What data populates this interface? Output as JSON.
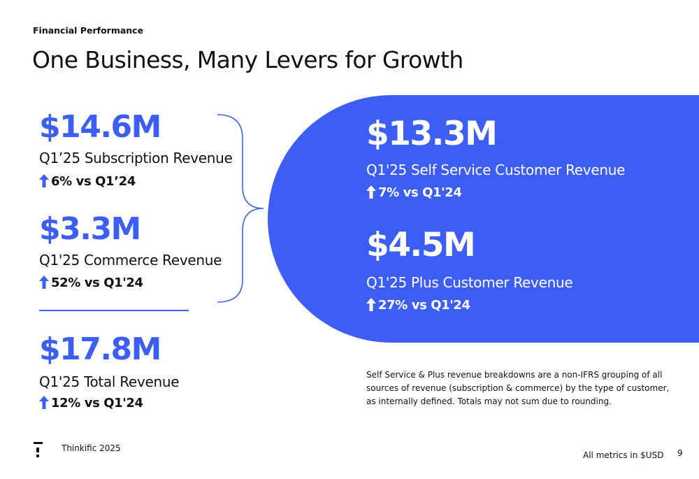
{
  "header": {
    "eyebrow": "Financial Performance",
    "title": "One Business, Many Levers for Growth"
  },
  "left_metrics": [
    {
      "value": "$14.6M",
      "label": "Q1’25 Subscription Revenue",
      "change": "6% vs Q1’24"
    },
    {
      "value": "$3.3M",
      "label": "Q1'25 Commerce Revenue",
      "change": "52% vs Q1'24"
    },
    {
      "value": "$17.8M",
      "label": "Q1'25 Total Revenue",
      "change": "12% vs Q1'24"
    }
  ],
  "right_metrics": [
    {
      "value": "$13.3M",
      "label": "Q1'25 Self Service Customer Revenue",
      "change": "7% vs Q1'24"
    },
    {
      "value": "$4.5M",
      "label": "Q1'25 Plus Customer Revenue",
      "change": "27% vs Q1'24"
    }
  ],
  "footnote": "Self Service & Plus revenue breakdowns are a non-IFRS grouping of all sources of revenue (subscription & commerce) by the type of customer, as internally defined. Totals may not sum due to rounding.",
  "footer": {
    "brand": "Thinkific 2025",
    "units_note": "All metrics in $USD",
    "page_number": "9",
    "logo_icon": "thinkific-logo-icon"
  },
  "colors": {
    "accent": "#3d5ef5",
    "text": "#111111",
    "background": "#ffffff"
  }
}
